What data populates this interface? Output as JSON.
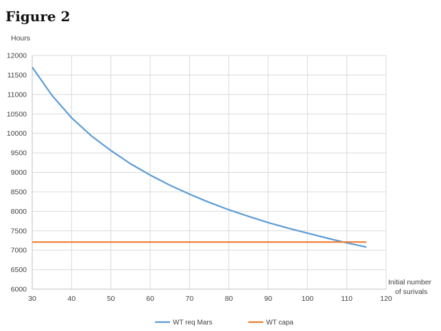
{
  "figure_label": "Figure 2",
  "chart_data": {
    "type": "line",
    "title": "",
    "ylabel": "Hours",
    "xlabel_line1": "Initial number",
    "xlabel_line2": "of surivals",
    "xlim": [
      30,
      120
    ],
    "ylim": [
      6000,
      12000
    ],
    "xticks": [
      30,
      40,
      50,
      60,
      70,
      80,
      90,
      100,
      110,
      120
    ],
    "yticks": [
      6000,
      6500,
      7000,
      7500,
      8000,
      8500,
      9000,
      9500,
      10000,
      10500,
      11000,
      11500,
      12000
    ],
    "grid": true,
    "legend_position": "bottom",
    "series": [
      {
        "name": "WT req Mars",
        "color": "#5b9bd5",
        "x": [
          30,
          35,
          40,
          45,
          50,
          55,
          60,
          65,
          70,
          75,
          80,
          85,
          90,
          95,
          100,
          105,
          110,
          115
        ],
        "y": [
          11700,
          10980,
          10400,
          9940,
          9560,
          9220,
          8930,
          8670,
          8440,
          8230,
          8040,
          7870,
          7710,
          7570,
          7440,
          7310,
          7190,
          7080
        ]
      },
      {
        "name": "WT capa",
        "color": "#ed7d31",
        "x": [
          30,
          115
        ],
        "y": [
          7210,
          7210
        ]
      }
    ]
  }
}
